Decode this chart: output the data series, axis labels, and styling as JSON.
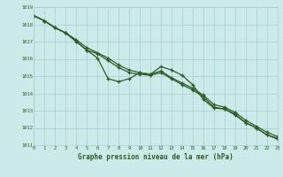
{
  "hours": [
    0,
    1,
    2,
    3,
    4,
    5,
    6,
    7,
    8,
    9,
    10,
    11,
    12,
    13,
    14,
    15,
    16,
    17,
    18,
    19,
    20,
    21,
    22,
    23
  ],
  "series1": [
    1018.5,
    1018.2,
    1017.8,
    1017.5,
    1017.0,
    1016.5,
    1016.05,
    1014.85,
    1014.68,
    1014.85,
    1015.2,
    1015.1,
    1015.55,
    1015.35,
    1015.05,
    1014.5,
    1013.65,
    1013.15,
    1013.1,
    1012.75,
    1012.3,
    1012.0,
    1011.6,
    1011.35
  ],
  "series2": [
    1018.5,
    1018.2,
    1017.8,
    1017.5,
    1017.0,
    1016.5,
    1016.3,
    1015.9,
    1015.5,
    1015.2,
    1015.1,
    1015.05,
    1015.2,
    1014.85,
    1014.5,
    1014.2,
    1013.8,
    1013.2,
    1013.1,
    1012.8,
    1012.3,
    1012.0,
    1011.6,
    1011.4
  ],
  "series3": [
    1018.5,
    1018.2,
    1017.8,
    1017.5,
    1017.1,
    1016.65,
    1016.35,
    1016.05,
    1015.65,
    1015.35,
    1015.2,
    1015.1,
    1015.3,
    1014.9,
    1014.6,
    1014.3,
    1013.9,
    1013.35,
    1013.2,
    1012.9,
    1012.45,
    1012.1,
    1011.75,
    1011.5
  ],
  "line_color": "#2d5a27",
  "bg_color": "#cceaea",
  "grid_color": "#aacccc",
  "xlabel": "Graphe pression niveau de la mer (hPa)",
  "ylim": [
    1011,
    1019
  ],
  "yticks": [
    1011,
    1012,
    1013,
    1014,
    1015,
    1016,
    1017,
    1018,
    1019
  ],
  "xticks": [
    0,
    1,
    2,
    3,
    4,
    5,
    6,
    7,
    8,
    9,
    10,
    11,
    12,
    13,
    14,
    15,
    16,
    17,
    18,
    19,
    20,
    21,
    22,
    23
  ]
}
